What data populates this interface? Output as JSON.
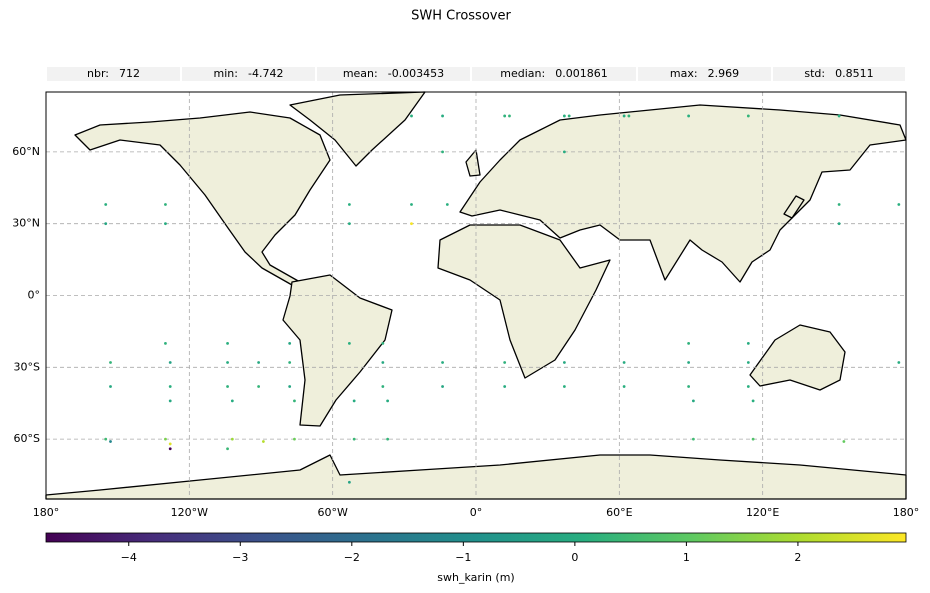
{
  "chart_data": {
    "type": "scatter",
    "title": "SWH Crossover",
    "stats": [
      {
        "label": "nbr:",
        "value": 712
      },
      {
        "label": "min:",
        "value": -4.742
      },
      {
        "label": "mean:",
        "value": -0.003453
      },
      {
        "label": "median:",
        "value": 0.001861
      },
      {
        "label": "max:",
        "value": 2.969
      },
      {
        "label": "std:",
        "value": 0.8511
      }
    ],
    "x": [
      -155,
      -155,
      -153,
      -153,
      -130,
      -130,
      -128,
      -128,
      -155,
      -153,
      -130,
      -128,
      -104,
      -104,
      -102,
      -91,
      -91,
      -89,
      -78,
      -78,
      -76,
      -53,
      -53,
      -51,
      -39,
      -39,
      -37,
      -27,
      -27,
      -14,
      -14,
      -12,
      12,
      12,
      14,
      37,
      37,
      39,
      62,
      62,
      64,
      89,
      89,
      91,
      114,
      114,
      116,
      152,
      152,
      154,
      177,
      177,
      -130,
      -128,
      -104,
      -102,
      -78,
      -76,
      -53,
      -51,
      89,
      91,
      114,
      116,
      -39,
      -37,
      -27,
      -14,
      12,
      37,
      62,
      89,
      114,
      152,
      -53,
      -128,
      -104,
      -14,
      37
    ],
    "y": [
      38,
      30,
      -28,
      -38,
      38,
      30,
      -28,
      -38,
      -60,
      -61,
      -60,
      -62,
      -28,
      -38,
      -60,
      -28,
      -38,
      -61,
      -28,
      -38,
      -60,
      38,
      30,
      -60,
      -28,
      -38,
      -60,
      38,
      30,
      -28,
      -38,
      38,
      -28,
      -38,
      75,
      -28,
      -38,
      75,
      -28,
      -38,
      75,
      -28,
      -38,
      -60,
      -28,
      -38,
      -60,
      38,
      30,
      -61,
      38,
      -28,
      -20,
      -44,
      -20,
      -44,
      -20,
      -44,
      -20,
      -44,
      -20,
      -44,
      -20,
      -44,
      -20,
      -44,
      75,
      75,
      75,
      75,
      75,
      75,
      75,
      75,
      -78,
      -64,
      -64,
      60,
      60
    ],
    "values": [
      0.1,
      -0.2,
      0.3,
      -0.1,
      0.2,
      0.0,
      -0.3,
      0.1,
      0.5,
      -1.2,
      1.4,
      2.6,
      0.0,
      0.2,
      1.8,
      -0.1,
      0.3,
      2.1,
      0.2,
      -0.2,
      1.2,
      0.1,
      0.0,
      0.4,
      -0.1,
      0.2,
      0.3,
      0.1,
      2.9,
      0.0,
      -0.2,
      0.1,
      0.2,
      0.0,
      0.3,
      -0.1,
      0.1,
      0.2,
      0.0,
      0.1,
      0.3,
      -0.1,
      0.2,
      0.5,
      0.0,
      0.1,
      0.8,
      0.2,
      -0.1,
      1.1,
      0.1,
      0.0,
      0.2,
      -0.1,
      0.1,
      0.0,
      -0.2,
      0.3,
      0.1,
      0.0,
      0.2,
      -0.1,
      0.0,
      0.1,
      0.2,
      0.0,
      0.1,
      0.0,
      0.2,
      0.1,
      0.0,
      0.1,
      0.3,
      0.1,
      -0.3,
      -4.742,
      0.4,
      0.2,
      0.0
    ],
    "xlim": [
      -180,
      180
    ],
    "ylim": [
      -85,
      85
    ],
    "xticks": [
      {
        "value": -180,
        "label": "180°"
      },
      {
        "value": -120,
        "label": "120°W"
      },
      {
        "value": -60,
        "label": "60°W"
      },
      {
        "value": 0,
        "label": "0°"
      },
      {
        "value": 60,
        "label": "60°E"
      },
      {
        "value": 120,
        "label": "120°E"
      },
      {
        "value": 180,
        "label": "180°"
      }
    ],
    "yticks": [
      {
        "value": -60,
        "label": "60°S"
      },
      {
        "value": -30,
        "label": "30°S"
      },
      {
        "value": 0,
        "label": "0°"
      },
      {
        "value": 30,
        "label": "30°N"
      },
      {
        "value": 60,
        "label": "60°N"
      }
    ],
    "grid": true,
    "colorbar": {
      "label": "swh_karin (m)",
      "colormap": "viridis",
      "lim": [
        -4.742,
        2.969
      ],
      "ticks": [
        {
          "value": -4,
          "label": "−4"
        },
        {
          "value": -3,
          "label": "−3"
        },
        {
          "value": -2,
          "label": "−2"
        },
        {
          "value": -1,
          "label": "−1"
        },
        0,
        1,
        2
      ]
    }
  }
}
